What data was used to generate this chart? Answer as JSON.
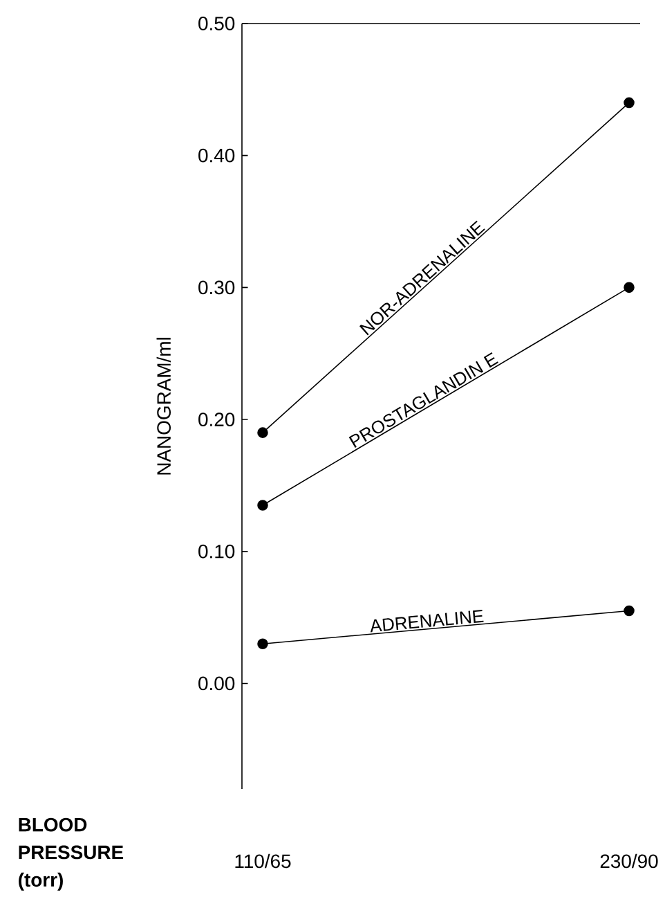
{
  "chart_data": {
    "type": "line",
    "xlabel": "BLOOD PRESSURE (torr)",
    "ylabel": "NANOGRAM/ml",
    "categories": [
      "110/65",
      "230/90"
    ],
    "series": [
      {
        "name": "NOR-ADRENALINE",
        "color": "#000000",
        "values": [
          0.19,
          0.44
        ]
      },
      {
        "name": "PROSTAGLANDIN E",
        "color": "#000000",
        "values": [
          0.135,
          0.3
        ]
      },
      {
        "name": "ADRENALINE",
        "color": "#000000",
        "values": [
          0.03,
          0.055
        ]
      }
    ],
    "ylim": [
      -0.08,
      0.5
    ],
    "yticks": [
      {
        "value": 0,
        "label": "0.00"
      },
      {
        "value": 0.1,
        "label": "0.10"
      },
      {
        "value": 0.2,
        "label": "0.20"
      },
      {
        "value": 0.3,
        "label": "0.30"
      },
      {
        "value": 0.4,
        "label": "0.40"
      },
      {
        "value": 0.5,
        "label": "0.50"
      }
    ],
    "marker": "circle",
    "line_style": "solid",
    "legend": false,
    "grid": false
  }
}
